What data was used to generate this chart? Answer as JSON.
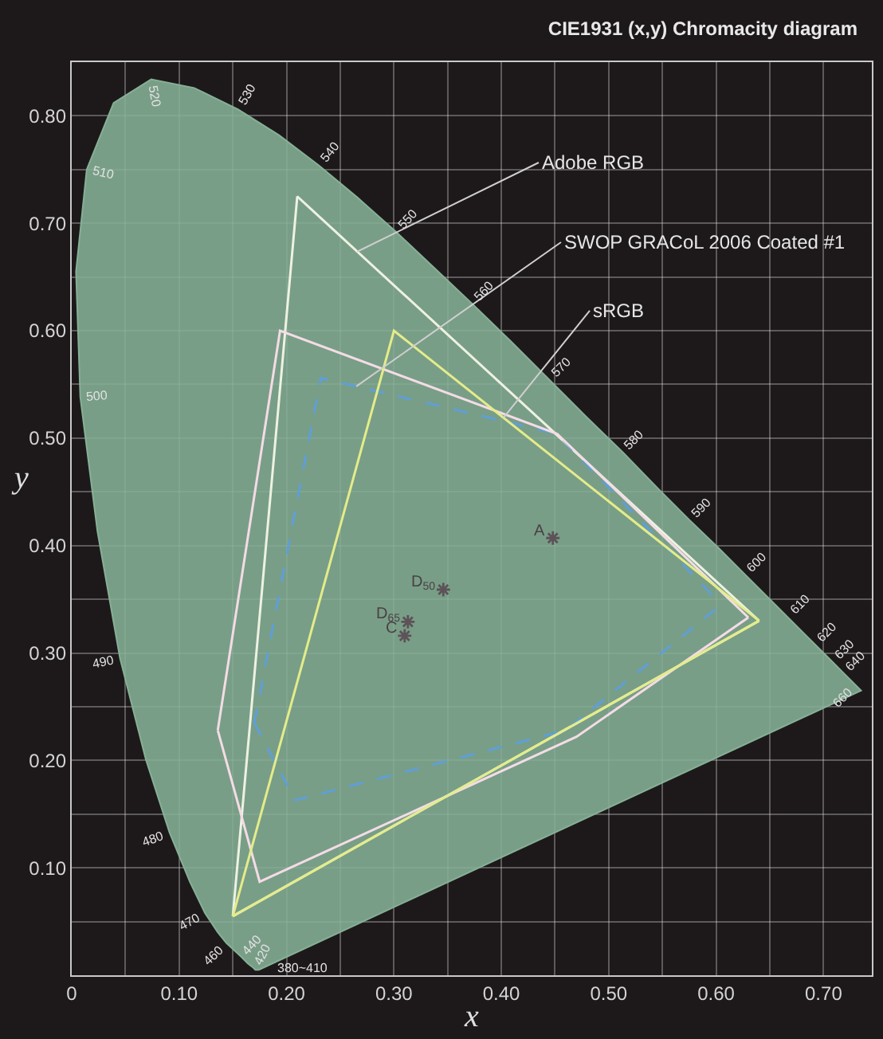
{
  "chart_data": {
    "type": "line",
    "title": "CIE1931 (x,y) Chromacity diagram",
    "xlabel": "x",
    "ylabel": "y",
    "xlim": [
      0,
      0.745
    ],
    "ylim": [
      0,
      0.85
    ],
    "xticks": [
      {
        "value": 0,
        "label": "0"
      },
      {
        "value": 0.05,
        "label": null
      },
      {
        "value": 0.1,
        "label": "0.10"
      },
      {
        "value": 0.15,
        "label": null
      },
      {
        "value": 0.2,
        "label": "0.20"
      },
      {
        "value": 0.25,
        "label": null
      },
      {
        "value": 0.3,
        "label": "0.30"
      },
      {
        "value": 0.35,
        "label": null
      },
      {
        "value": 0.4,
        "label": "0.40"
      },
      {
        "value": 0.45,
        "label": null
      },
      {
        "value": 0.5,
        "label": "0.50"
      },
      {
        "value": 0.55,
        "label": null
      },
      {
        "value": 0.6,
        "label": "0.60"
      },
      {
        "value": 0.65,
        "label": null
      },
      {
        "value": 0.7,
        "label": "0.70"
      }
    ],
    "yticks": [
      {
        "value": 0,
        "label": null
      },
      {
        "value": 0.05,
        "label": null
      },
      {
        "value": 0.1,
        "label": "0.10"
      },
      {
        "value": 0.15,
        "label": null
      },
      {
        "value": 0.2,
        "label": "0.20"
      },
      {
        "value": 0.25,
        "label": null
      },
      {
        "value": 0.3,
        "label": "0.30"
      },
      {
        "value": 0.35,
        "label": null
      },
      {
        "value": 0.4,
        "label": "0.40"
      },
      {
        "value": 0.45,
        "label": null
      },
      {
        "value": 0.5,
        "label": "0.50"
      },
      {
        "value": 0.55,
        "label": null
      },
      {
        "value": 0.6,
        "label": "0.60"
      },
      {
        "value": 0.65,
        "label": null
      },
      {
        "value": 0.7,
        "label": "0.70"
      },
      {
        "value": 0.75,
        "label": null
      },
      {
        "value": 0.8,
        "label": "0.80"
      }
    ],
    "grid": true,
    "series": [
      {
        "type": "area",
        "color": "#86b096",
        "x": [
          0.174,
          0.173,
          0.171,
          0.169,
          0.164,
          0.157,
          0.144,
          0.136,
          0.124,
          0.11,
          0.091,
          0.069,
          0.045,
          0.024,
          0.008,
          0.004,
          0.014,
          0.039,
          0.074,
          0.114,
          0.155,
          0.193,
          0.23,
          0.266,
          0.302,
          0.337,
          0.373,
          0.409,
          0.444,
          0.479,
          0.513,
          0.545,
          0.575,
          0.603,
          0.627,
          0.666,
          0.692,
          0.708,
          0.719,
          0.73,
          0.735,
          0.174
        ],
        "values": [
          0.005,
          0.005,
          0.005,
          0.007,
          0.011,
          0.018,
          0.03,
          0.04,
          0.058,
          0.087,
          0.133,
          0.201,
          0.295,
          0.413,
          0.538,
          0.655,
          0.75,
          0.812,
          0.834,
          0.826,
          0.806,
          0.782,
          0.754,
          0.724,
          0.692,
          0.659,
          0.625,
          0.59,
          0.555,
          0.52,
          0.487,
          0.454,
          0.424,
          0.397,
          0.373,
          0.334,
          0.308,
          0.292,
          0.281,
          0.27,
          0.265,
          0.005
        ]
      },
      {
        "name": "Adobe RGB",
        "color": "#eef2e2",
        "x": [
          0.15,
          0.21,
          0.64,
          null,
          0.15,
          0.64
        ],
        "values": [
          0.055,
          0.725,
          0.33,
          null,
          0.055,
          0.33
        ]
      },
      {
        "name": "SWOP GRACoL 2006 Coated #1",
        "color": "#5f9fd8",
        "line_style": "dashed",
        "x": [
          0.17,
          0.232,
          0.452,
          0.605,
          null,
          0.17,
          0.208,
          0.46,
          0.605
        ],
        "values": [
          0.235,
          0.556,
          0.504,
          0.345,
          null,
          0.235,
          0.163,
          0.228,
          0.345
        ]
      },
      {
        "color": "#f4dce6",
        "x": [
          0.136,
          0.194,
          0.452,
          0.63,
          null,
          0.136,
          0.175,
          0.47,
          0.63
        ],
        "values": [
          0.228,
          0.6,
          0.504,
          0.333,
          null,
          0.228,
          0.087,
          0.222,
          0.333
        ]
      },
      {
        "name": "sRGB",
        "color": "#e4ec8a",
        "x": [
          0.15,
          0.3,
          0.64,
          null,
          0.15,
          0.64
        ],
        "values": [
          0.055,
          0.6,
          0.33,
          null,
          0.055,
          0.33
        ]
      },
      {
        "type": "scatter",
        "color": "#5c5258",
        "marker": "cross",
        "x": [
          0.448,
          0.346,
          0.313,
          0.31
        ],
        "values": [
          0.407,
          0.359,
          0.329,
          0.316
        ]
      }
    ],
    "annotations": [
      {
        "text": "380~410",
        "x": 0.174,
        "y": 0.005
      },
      {
        "text": "420",
        "x": 0.171,
        "y": 0.005
      },
      {
        "text": "440",
        "x": 0.164,
        "y": 0.011
      },
      {
        "text": "460",
        "x": 0.144,
        "y": 0.03
      },
      {
        "text": "470",
        "x": 0.124,
        "y": 0.058
      },
      {
        "text": "480",
        "x": 0.091,
        "y": 0.133
      },
      {
        "text": "490",
        "x": 0.045,
        "y": 0.295
      },
      {
        "text": "500",
        "x": 0.008,
        "y": 0.538
      },
      {
        "text": "510",
        "x": 0.014,
        "y": 0.75
      },
      {
        "text": "520",
        "x": 0.074,
        "y": 0.834
      },
      {
        "text": "530",
        "x": 0.155,
        "y": 0.806
      },
      {
        "text": "540",
        "x": 0.23,
        "y": 0.754
      },
      {
        "text": "550",
        "x": 0.302,
        "y": 0.692
      },
      {
        "text": "560",
        "x": 0.373,
        "y": 0.625
      },
      {
        "text": "570",
        "x": 0.444,
        "y": 0.555
      },
      {
        "text": "580",
        "x": 0.513,
        "y": 0.487
      },
      {
        "text": "590",
        "x": 0.575,
        "y": 0.424
      },
      {
        "text": "600",
        "x": 0.627,
        "y": 0.373
      },
      {
        "text": "610",
        "x": 0.666,
        "y": 0.334
      },
      {
        "text": "620",
        "x": 0.692,
        "y": 0.308
      },
      {
        "text": "630",
        "x": 0.708,
        "y": 0.292
      },
      {
        "text": "640",
        "x": 0.719,
        "y": 0.281
      },
      {
        "text": "660",
        "x": 0.73,
        "y": 0.27
      },
      {
        "text": "A",
        "x": 0.448,
        "y": 0.407
      },
      {
        "text": "D$_{50}$",
        "x": 0.346,
        "y": 0.359
      },
      {
        "text": "D$_{65}$",
        "x": 0.313,
        "y": 0.329
      },
      {
        "text": "C",
        "x": 0.31,
        "y": 0.316
      }
    ]
  }
}
